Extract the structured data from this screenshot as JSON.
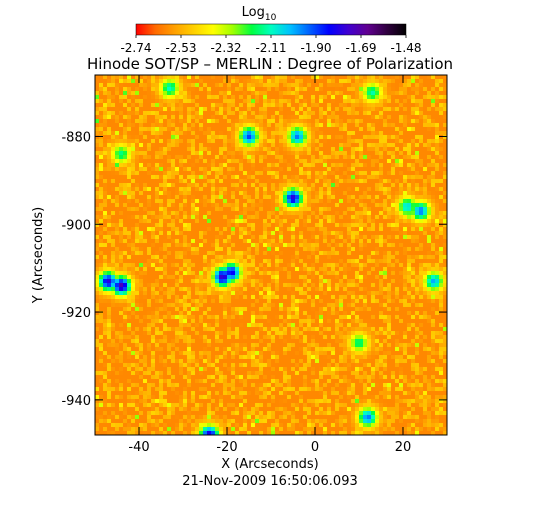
{
  "chart_data": {
    "type": "heatmap",
    "title": "Hinode SOT/SP – MERLIN : Degree of Polarization",
    "xlabel": "X (Arcseconds)",
    "ylabel": "Y (Arcseconds)",
    "timestamp": "21-Nov-2009 16:50:06.093",
    "colorbar": {
      "label_base": "Log",
      "label_sub": "10",
      "ticks": [
        "-2.74",
        "-2.53",
        "-2.32",
        "-2.11",
        "-1.90",
        "-1.69",
        "-1.48"
      ],
      "range": [
        -2.74,
        -1.48
      ],
      "colormap": [
        "#ff0000",
        "#ff6a00",
        "#ffa000",
        "#ffd000",
        "#ffff00",
        "#a0ff00",
        "#00ff40",
        "#00ffc0",
        "#00c0ff",
        "#0060ff",
        "#0000ff",
        "#4000d0",
        "#600090",
        "#300040",
        "#000000"
      ]
    },
    "xlim": [
      -50,
      30
    ],
    "ylim": [
      -948,
      -866
    ],
    "xticks": [
      {
        "value": -40,
        "label": "-40"
      },
      {
        "value": -20,
        "label": "-20"
      },
      {
        "value": 0,
        "label": "0"
      },
      {
        "value": 20,
        "label": "20"
      }
    ],
    "yticks": [
      {
        "value": -880,
        "label": "-880"
      },
      {
        "value": -900,
        "label": "-900"
      },
      {
        "value": -920,
        "label": "-920"
      },
      {
        "value": -940,
        "label": "-940"
      }
    ],
    "background_level": -2.6,
    "features": [
      {
        "x": -47,
        "y": -913,
        "value": -1.78
      },
      {
        "x": -44,
        "y": -914,
        "value": -1.72
      },
      {
        "x": -21,
        "y": -912,
        "value": -1.75
      },
      {
        "x": -19,
        "y": -911,
        "value": -1.82
      },
      {
        "x": -5,
        "y": -894,
        "value": -1.78
      },
      {
        "x": -4,
        "y": -880,
        "value": -1.95
      },
      {
        "x": -15,
        "y": -880,
        "value": -1.9
      },
      {
        "x": 24,
        "y": -897,
        "value": -1.95
      },
      {
        "x": 21,
        "y": -896,
        "value": -2.05
      },
      {
        "x": 12,
        "y": -944,
        "value": -1.95
      },
      {
        "x": -24,
        "y": -948,
        "value": -1.78
      },
      {
        "x": 27,
        "y": -913,
        "value": -2.0
      },
      {
        "x": -33,
        "y": -869,
        "value": -2.1
      },
      {
        "x": 13,
        "y": -870,
        "value": -2.12
      },
      {
        "x": -44,
        "y": -884,
        "value": -2.15
      },
      {
        "x": 10,
        "y": -927,
        "value": -2.15
      }
    ]
  }
}
